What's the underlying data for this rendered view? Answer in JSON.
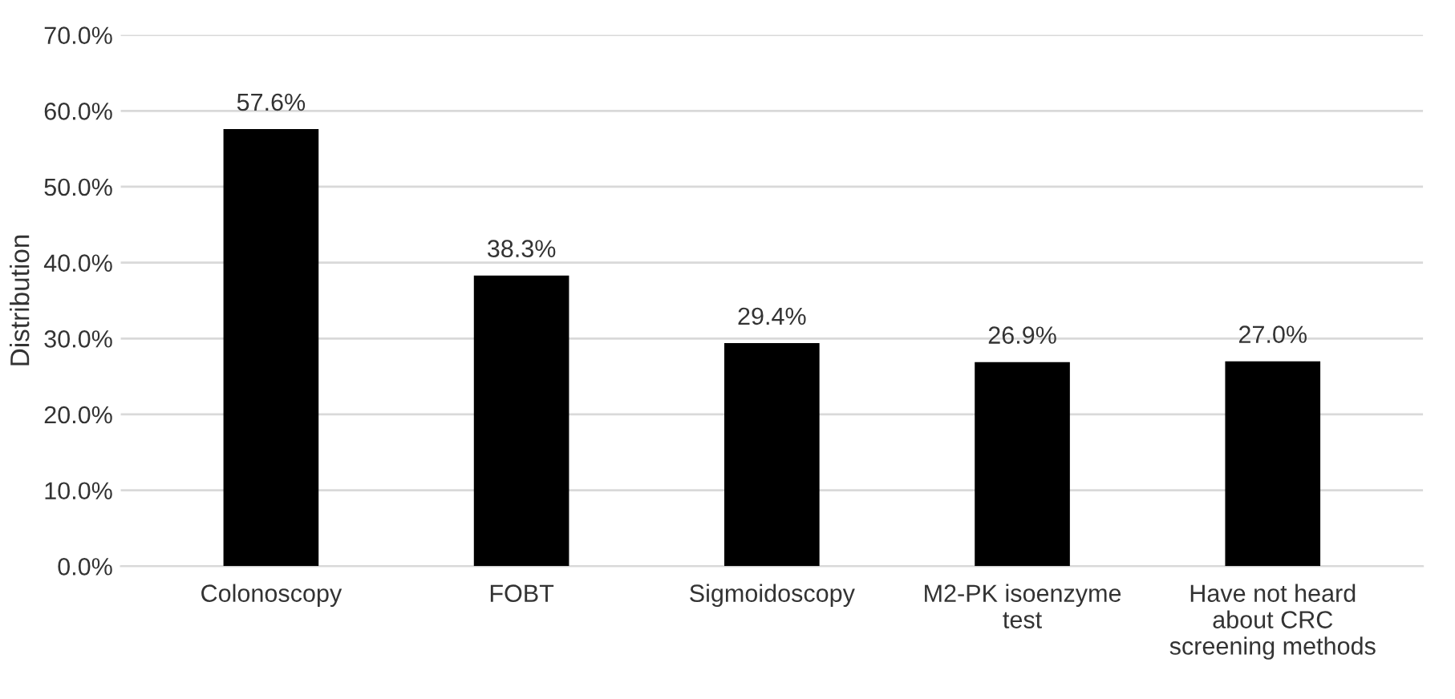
{
  "chart_data": {
    "type": "bar",
    "ylabel": "Distribution",
    "categories": [
      "Colonoscopy",
      "FOBT",
      "Sigmoidoscopy",
      "M2-PK isoenzyme\ntest",
      "Have not heard\nabout CRC\nscreening methods"
    ],
    "values": [
      57.6,
      38.3,
      29.4,
      26.9,
      27.0
    ],
    "value_labels": [
      "57.6%",
      "38.3%",
      "29.4%",
      "26.9%",
      "27.0%"
    ],
    "color": "#000000",
    "ylim": [
      0,
      70
    ],
    "yticks": [
      {
        "value": 0,
        "label": "0.0%"
      },
      {
        "value": 10,
        "label": "10.0%"
      },
      {
        "value": 20,
        "label": "20.0%"
      },
      {
        "value": 30,
        "label": "30.0%"
      },
      {
        "value": 40,
        "label": "40.0%"
      },
      {
        "value": 50,
        "label": "50.0%"
      },
      {
        "value": 60,
        "label": "60.0%"
      },
      {
        "value": 70,
        "label": "70.0%"
      }
    ],
    "grid": "y"
  }
}
